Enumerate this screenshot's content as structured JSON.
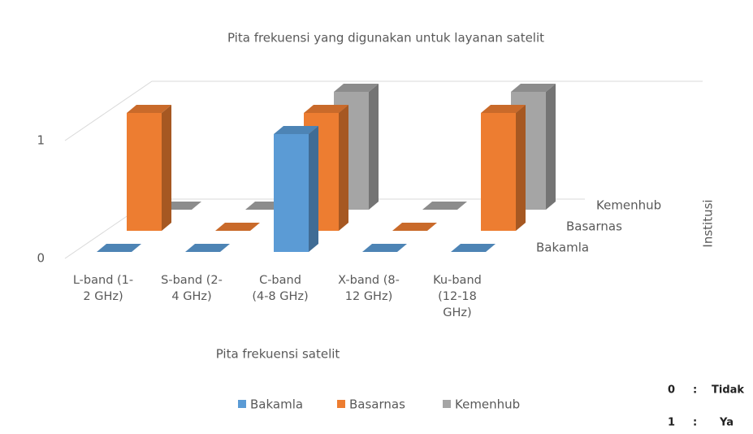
{
  "chart_data": {
    "type": "bar3d",
    "title": "Pita frekuensi yang digunakan untuk layanan satelit",
    "x_label": "Pita frekuensi satelit",
    "depth_label": "Institusi",
    "categories": [
      "L-band (1-2 GHz)",
      "S-band (2-4 GHz)",
      "C-band (4-8 GHz)",
      "X-band (8-12 GHz)",
      "Ku-band (12-18 GHz)"
    ],
    "series": [
      {
        "name": "Bakamla",
        "color": "#5b9bd5",
        "values": [
          0,
          0,
          1,
          0,
          0
        ]
      },
      {
        "name": "Basarnas",
        "color": "#ed7d31",
        "values": [
          1,
          0,
          1,
          0,
          1
        ]
      },
      {
        "name": "Kemenhub",
        "color": "#a5a5a5",
        "values": [
          0,
          0,
          1,
          0,
          1
        ]
      }
    ],
    "ylim": [
      0,
      1
    ],
    "yticks": [
      0,
      1
    ],
    "grid": true,
    "legend": "bottom",
    "notes": [
      {
        "code": "0",
        "separator": ":",
        "meaning": "Tidak"
      },
      {
        "code": "1",
        "separator": ":",
        "meaning": "Ya"
      }
    ]
  }
}
